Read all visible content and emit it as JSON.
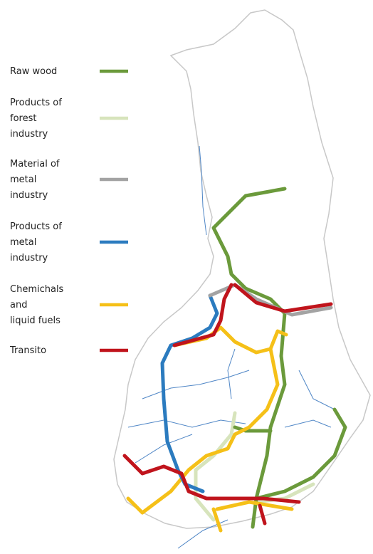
{
  "legend": [
    {
      "label": [
        "Raw wood"
      ],
      "color": "#6b9a3b"
    },
    {
      "label": [
        "Products of",
        "forest",
        "industry"
      ],
      "color": "#d7e4bc"
    },
    {
      "label": [
        "Material of",
        "metal",
        "industry"
      ],
      "color": "#a3a3a3"
    },
    {
      "label": [
        "Products of",
        "metal",
        "industry"
      ],
      "color": "#2b7bbf"
    },
    {
      "label": [
        "Chemichals",
        "and",
        "liquid fuels"
      ],
      "color": "#f5c018"
    },
    {
      "label": [
        "Transito"
      ],
      "color": "#c0141c"
    }
  ]
}
